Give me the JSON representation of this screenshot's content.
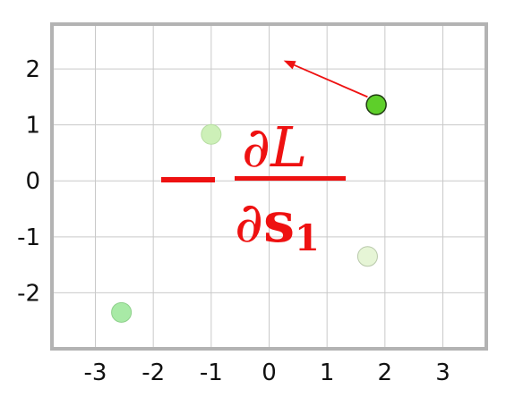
{
  "chart_data": {
    "type": "scatter",
    "x_ticks": [
      "-3",
      "-2",
      "-1",
      "0",
      "1",
      "2",
      "3"
    ],
    "y_ticks": [
      "2",
      "1",
      "0",
      "-1",
      "-2"
    ],
    "xlim": [
      -3.75,
      3.75
    ],
    "ylim": [
      -3.0,
      2.8
    ],
    "grid": true,
    "points": [
      {
        "x": 1.85,
        "y": 1.36,
        "color": "#5ecf2a",
        "stroke": "#1f3a12",
        "highlighted": true
      },
      {
        "x": -1.0,
        "y": 0.83,
        "color": "#cdf0b8",
        "stroke": "#b5dca0",
        "highlighted": false
      },
      {
        "x": 1.7,
        "y": -1.35,
        "color": "#e6f5d6",
        "stroke": "#b8c8aa",
        "highlighted": false
      },
      {
        "x": -2.55,
        "y": -2.35,
        "color": "#a8eaa6",
        "stroke": "#8fd08c",
        "highlighted": false
      }
    ],
    "arrow": {
      "from": {
        "x": 1.7,
        "y": 1.5
      },
      "to": {
        "x": 0.25,
        "y": 2.15
      },
      "color": "#ee1111"
    },
    "annotation": {
      "sign": "−",
      "numerator": "∂L",
      "denominator_partial": "∂",
      "denominator_symbol": "s",
      "denominator_subscript": "1",
      "color": "#ee1111"
    }
  }
}
